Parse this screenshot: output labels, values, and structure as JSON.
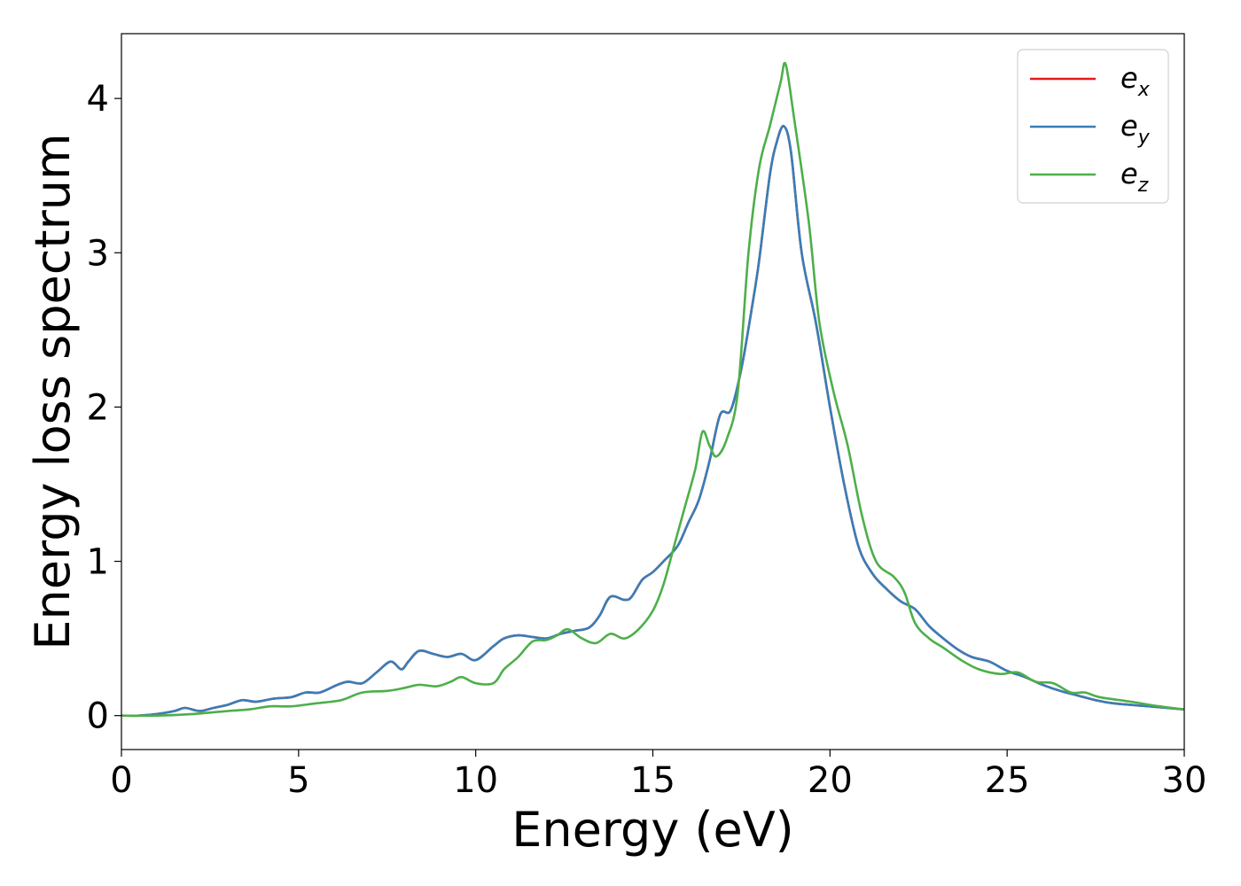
{
  "chart_data": {
    "type": "line",
    "title": "",
    "xlabel": "Energy (eV)",
    "ylabel": "Energy loss spectrum",
    "xlim": [
      0,
      30
    ],
    "ylim": [
      -0.22,
      4.42
    ],
    "xticks": [
      0,
      5,
      10,
      15,
      20,
      25,
      30
    ],
    "yticks": [
      0,
      1,
      2,
      3,
      4
    ],
    "grid": false,
    "legend_position": "top-right",
    "series": [
      {
        "name": "e_x",
        "legend_base": "e",
        "legend_sub": "x",
        "color": "#e41a1c",
        "points": [
          [
            0,
            0
          ],
          [
            0.5,
            0
          ],
          [
            1,
            0.01
          ],
          [
            1.5,
            0.03
          ],
          [
            1.8,
            0.05
          ],
          [
            2.2,
            0.03
          ],
          [
            2.6,
            0.05
          ],
          [
            3,
            0.07
          ],
          [
            3.4,
            0.1
          ],
          [
            3.8,
            0.09
          ],
          [
            4.3,
            0.11
          ],
          [
            4.8,
            0.12
          ],
          [
            5.2,
            0.15
          ],
          [
            5.6,
            0.15
          ],
          [
            6.1,
            0.2
          ],
          [
            6.4,
            0.22
          ],
          [
            6.8,
            0.21
          ],
          [
            7.2,
            0.28
          ],
          [
            7.6,
            0.35
          ],
          [
            7.9,
            0.3
          ],
          [
            8.1,
            0.35
          ],
          [
            8.4,
            0.42
          ],
          [
            8.8,
            0.4
          ],
          [
            9.2,
            0.38
          ],
          [
            9.6,
            0.4
          ],
          [
            10,
            0.36
          ],
          [
            10.5,
            0.45
          ],
          [
            10.8,
            0.5
          ],
          [
            11.2,
            0.52
          ],
          [
            11.6,
            0.51
          ],
          [
            12,
            0.5
          ],
          [
            12.4,
            0.53
          ],
          [
            12.8,
            0.55
          ],
          [
            13.2,
            0.57
          ],
          [
            13.5,
            0.65
          ],
          [
            13.8,
            0.77
          ],
          [
            14.2,
            0.75
          ],
          [
            14.4,
            0.77
          ],
          [
            14.7,
            0.88
          ],
          [
            15,
            0.93
          ],
          [
            15.3,
            1
          ],
          [
            15.7,
            1.1
          ],
          [
            16,
            1.25
          ],
          [
            16.3,
            1.4
          ],
          [
            16.6,
            1.65
          ],
          [
            16.9,
            1.95
          ],
          [
            17.2,
            1.98
          ],
          [
            17.5,
            2.25
          ],
          [
            17.8,
            2.65
          ],
          [
            18,
            2.95
          ],
          [
            18.3,
            3.5
          ],
          [
            18.5,
            3.72
          ],
          [
            18.7,
            3.82
          ],
          [
            18.9,
            3.65
          ],
          [
            19.2,
            3
          ],
          [
            19.6,
            2.55
          ],
          [
            20,
            2
          ],
          [
            20.4,
            1.5
          ],
          [
            20.8,
            1.1
          ],
          [
            21.2,
            0.92
          ],
          [
            21.6,
            0.82
          ],
          [
            22,
            0.74
          ],
          [
            22.4,
            0.69
          ],
          [
            22.8,
            0.58
          ],
          [
            23.2,
            0.5
          ],
          [
            23.6,
            0.43
          ],
          [
            24,
            0.38
          ],
          [
            24.5,
            0.35
          ],
          [
            25,
            0.29
          ],
          [
            25.5,
            0.25
          ],
          [
            26,
            0.2
          ],
          [
            26.5,
            0.16
          ],
          [
            27,
            0.13
          ],
          [
            27.5,
            0.1
          ],
          [
            28,
            0.08
          ],
          [
            29,
            0.06
          ],
          [
            30,
            0.04
          ]
        ]
      },
      {
        "name": "e_y",
        "legend_base": "e",
        "legend_sub": "y",
        "color": "#377eb8",
        "points": [
          [
            0,
            0
          ],
          [
            0.5,
            0
          ],
          [
            1,
            0.01
          ],
          [
            1.5,
            0.03
          ],
          [
            1.8,
            0.05
          ],
          [
            2.2,
            0.03
          ],
          [
            2.6,
            0.05
          ],
          [
            3,
            0.07
          ],
          [
            3.4,
            0.1
          ],
          [
            3.8,
            0.09
          ],
          [
            4.3,
            0.11
          ],
          [
            4.8,
            0.12
          ],
          [
            5.2,
            0.15
          ],
          [
            5.6,
            0.15
          ],
          [
            6.1,
            0.2
          ],
          [
            6.4,
            0.22
          ],
          [
            6.8,
            0.21
          ],
          [
            7.2,
            0.28
          ],
          [
            7.6,
            0.35
          ],
          [
            7.9,
            0.3
          ],
          [
            8.1,
            0.35
          ],
          [
            8.4,
            0.42
          ],
          [
            8.8,
            0.4
          ],
          [
            9.2,
            0.38
          ],
          [
            9.6,
            0.4
          ],
          [
            10,
            0.36
          ],
          [
            10.5,
            0.45
          ],
          [
            10.8,
            0.5
          ],
          [
            11.2,
            0.52
          ],
          [
            11.6,
            0.51
          ],
          [
            12,
            0.5
          ],
          [
            12.4,
            0.53
          ],
          [
            12.8,
            0.55
          ],
          [
            13.2,
            0.57
          ],
          [
            13.5,
            0.65
          ],
          [
            13.8,
            0.77
          ],
          [
            14.2,
            0.75
          ],
          [
            14.4,
            0.77
          ],
          [
            14.7,
            0.88
          ],
          [
            15,
            0.93
          ],
          [
            15.3,
            1
          ],
          [
            15.7,
            1.1
          ],
          [
            16,
            1.25
          ],
          [
            16.3,
            1.4
          ],
          [
            16.6,
            1.65
          ],
          [
            16.9,
            1.95
          ],
          [
            17.2,
            1.98
          ],
          [
            17.5,
            2.25
          ],
          [
            17.8,
            2.65
          ],
          [
            18,
            2.95
          ],
          [
            18.3,
            3.5
          ],
          [
            18.5,
            3.72
          ],
          [
            18.7,
            3.82
          ],
          [
            18.9,
            3.65
          ],
          [
            19.2,
            3
          ],
          [
            19.6,
            2.55
          ],
          [
            20,
            2
          ],
          [
            20.4,
            1.5
          ],
          [
            20.8,
            1.1
          ],
          [
            21.2,
            0.92
          ],
          [
            21.6,
            0.82
          ],
          [
            22,
            0.74
          ],
          [
            22.4,
            0.69
          ],
          [
            22.8,
            0.58
          ],
          [
            23.2,
            0.5
          ],
          [
            23.6,
            0.43
          ],
          [
            24,
            0.38
          ],
          [
            24.5,
            0.35
          ],
          [
            25,
            0.29
          ],
          [
            25.5,
            0.25
          ],
          [
            26,
            0.2
          ],
          [
            26.5,
            0.16
          ],
          [
            27,
            0.13
          ],
          [
            27.5,
            0.1
          ],
          [
            28,
            0.08
          ],
          [
            29,
            0.06
          ],
          [
            30,
            0.04
          ]
        ]
      },
      {
        "name": "e_z",
        "legend_base": "e",
        "legend_sub": "z",
        "color": "#4daf4a",
        "points": [
          [
            0,
            0
          ],
          [
            1,
            0
          ],
          [
            2,
            0.01
          ],
          [
            3,
            0.03
          ],
          [
            3.6,
            0.04
          ],
          [
            4.2,
            0.06
          ],
          [
            4.8,
            0.06
          ],
          [
            5.5,
            0.08
          ],
          [
            6.2,
            0.1
          ],
          [
            6.8,
            0.15
          ],
          [
            7.5,
            0.16
          ],
          [
            8,
            0.18
          ],
          [
            8.4,
            0.2
          ],
          [
            8.9,
            0.19
          ],
          [
            9.3,
            0.22
          ],
          [
            9.6,
            0.25
          ],
          [
            10,
            0.21
          ],
          [
            10.5,
            0.21
          ],
          [
            10.8,
            0.3
          ],
          [
            11.2,
            0.38
          ],
          [
            11.6,
            0.48
          ],
          [
            12,
            0.49
          ],
          [
            12.3,
            0.52
          ],
          [
            12.6,
            0.56
          ],
          [
            13,
            0.5
          ],
          [
            13.4,
            0.47
          ],
          [
            13.8,
            0.53
          ],
          [
            14.2,
            0.5
          ],
          [
            14.6,
            0.56
          ],
          [
            15,
            0.68
          ],
          [
            15.3,
            0.85
          ],
          [
            15.6,
            1.1
          ],
          [
            15.9,
            1.35
          ],
          [
            16.2,
            1.6
          ],
          [
            16.4,
            1.84
          ],
          [
            16.6,
            1.75
          ],
          [
            16.8,
            1.68
          ],
          [
            17.1,
            1.8
          ],
          [
            17.4,
            2.1
          ],
          [
            17.7,
            3
          ],
          [
            18,
            3.55
          ],
          [
            18.3,
            3.82
          ],
          [
            18.6,
            4.1
          ],
          [
            18.75,
            4.22
          ],
          [
            19,
            3.85
          ],
          [
            19.4,
            3.2
          ],
          [
            19.7,
            2.55
          ],
          [
            20.1,
            2.1
          ],
          [
            20.5,
            1.75
          ],
          [
            20.9,
            1.3
          ],
          [
            21.3,
            1
          ],
          [
            21.8,
            0.9
          ],
          [
            22.1,
            0.8
          ],
          [
            22.4,
            0.6
          ],
          [
            22.8,
            0.5
          ],
          [
            23.2,
            0.44
          ],
          [
            23.7,
            0.36
          ],
          [
            24.2,
            0.3
          ],
          [
            24.8,
            0.27
          ],
          [
            25.3,
            0.28
          ],
          [
            25.8,
            0.22
          ],
          [
            26.3,
            0.21
          ],
          [
            26.8,
            0.15
          ],
          [
            27.2,
            0.15
          ],
          [
            27.6,
            0.12
          ],
          [
            28.5,
            0.09
          ],
          [
            29.3,
            0.06
          ],
          [
            30,
            0.04
          ]
        ]
      }
    ]
  }
}
